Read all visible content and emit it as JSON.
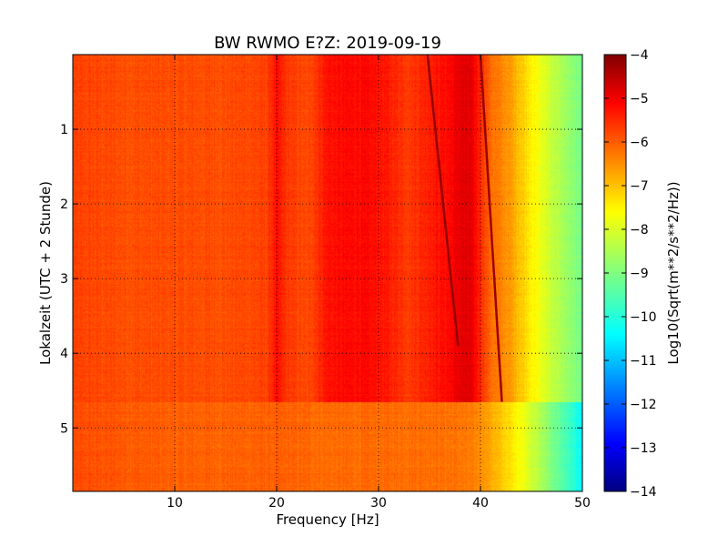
{
  "chart_data": {
    "type": "heatmap",
    "title": "BW RWMO E?Z: 2019-09-19",
    "xlabel": "Frequency [Hz]",
    "ylabel": "Lokalzeit (UTC + 2 Stunde)",
    "xlim": [
      0,
      50
    ],
    "ylim": [
      5.85,
      0
    ],
    "x_ticks": [
      10,
      20,
      30,
      40,
      50
    ],
    "x_tick_labels": [
      "10",
      "20",
      "30",
      "40",
      "50"
    ],
    "y_ticks": [
      1,
      2,
      3,
      4,
      5
    ],
    "y_tick_labels": [
      "1",
      "2",
      "3",
      "4",
      "5"
    ],
    "grid": true,
    "colormap": "jet",
    "colorbar": {
      "label": "Log10(Sqrt(m**2/s**2/Hz))",
      "range": [
        -14,
        -4
      ],
      "ticks": [
        -4,
        -5,
        -6,
        -7,
        -8,
        -9,
        -10,
        -11,
        -12,
        -13,
        -14
      ],
      "tick_labels": [
        "−4",
        "−5",
        "−6",
        "−7",
        "−8",
        "−9",
        "−10",
        "−11",
        "−12",
        "−13",
        "−14"
      ]
    },
    "regime_change_time": 4.65,
    "spectrum_before": {
      "frequency_hz": [
        0,
        5,
        10,
        15,
        19,
        20,
        21,
        23,
        25,
        28,
        30,
        33,
        35,
        37,
        38,
        39,
        40,
        41,
        43,
        44,
        45,
        46,
        47,
        48,
        49,
        50
      ],
      "value": [
        -5.9,
        -6.0,
        -6.0,
        -6.0,
        -5.9,
        -5.4,
        -5.8,
        -6.0,
        -5.4,
        -5.3,
        -5.4,
        -5.8,
        -5.5,
        -5.3,
        -5.0,
        -5.0,
        -5.6,
        -6.3,
        -6.8,
        -7.2,
        -7.6,
        -8.0,
        -8.3,
        -8.6,
        -8.9,
        -9.1
      ]
    },
    "spectrum_after": {
      "frequency_hz": [
        0,
        5,
        10,
        15,
        20,
        25,
        30,
        35,
        38,
        40,
        41,
        42,
        43,
        44,
        45,
        46,
        47,
        48,
        49,
        50
      ],
      "value": [
        -6.0,
        -6.1,
        -6.2,
        -6.2,
        -6.2,
        -6.3,
        -6.3,
        -6.3,
        -6.4,
        -6.6,
        -6.9,
        -7.2,
        -7.5,
        -7.8,
        -8.2,
        -8.6,
        -9.0,
        -9.4,
        -9.8,
        -10.3
      ]
    },
    "spectral_lines": [
      {
        "start": [
          34.8,
          0.0
        ],
        "end": [
          37.8,
          3.9
        ],
        "value": -4.2
      },
      {
        "start": [
          40.0,
          0.0
        ],
        "end": [
          42.1,
          4.65
        ],
        "value": -4.3
      }
    ]
  }
}
